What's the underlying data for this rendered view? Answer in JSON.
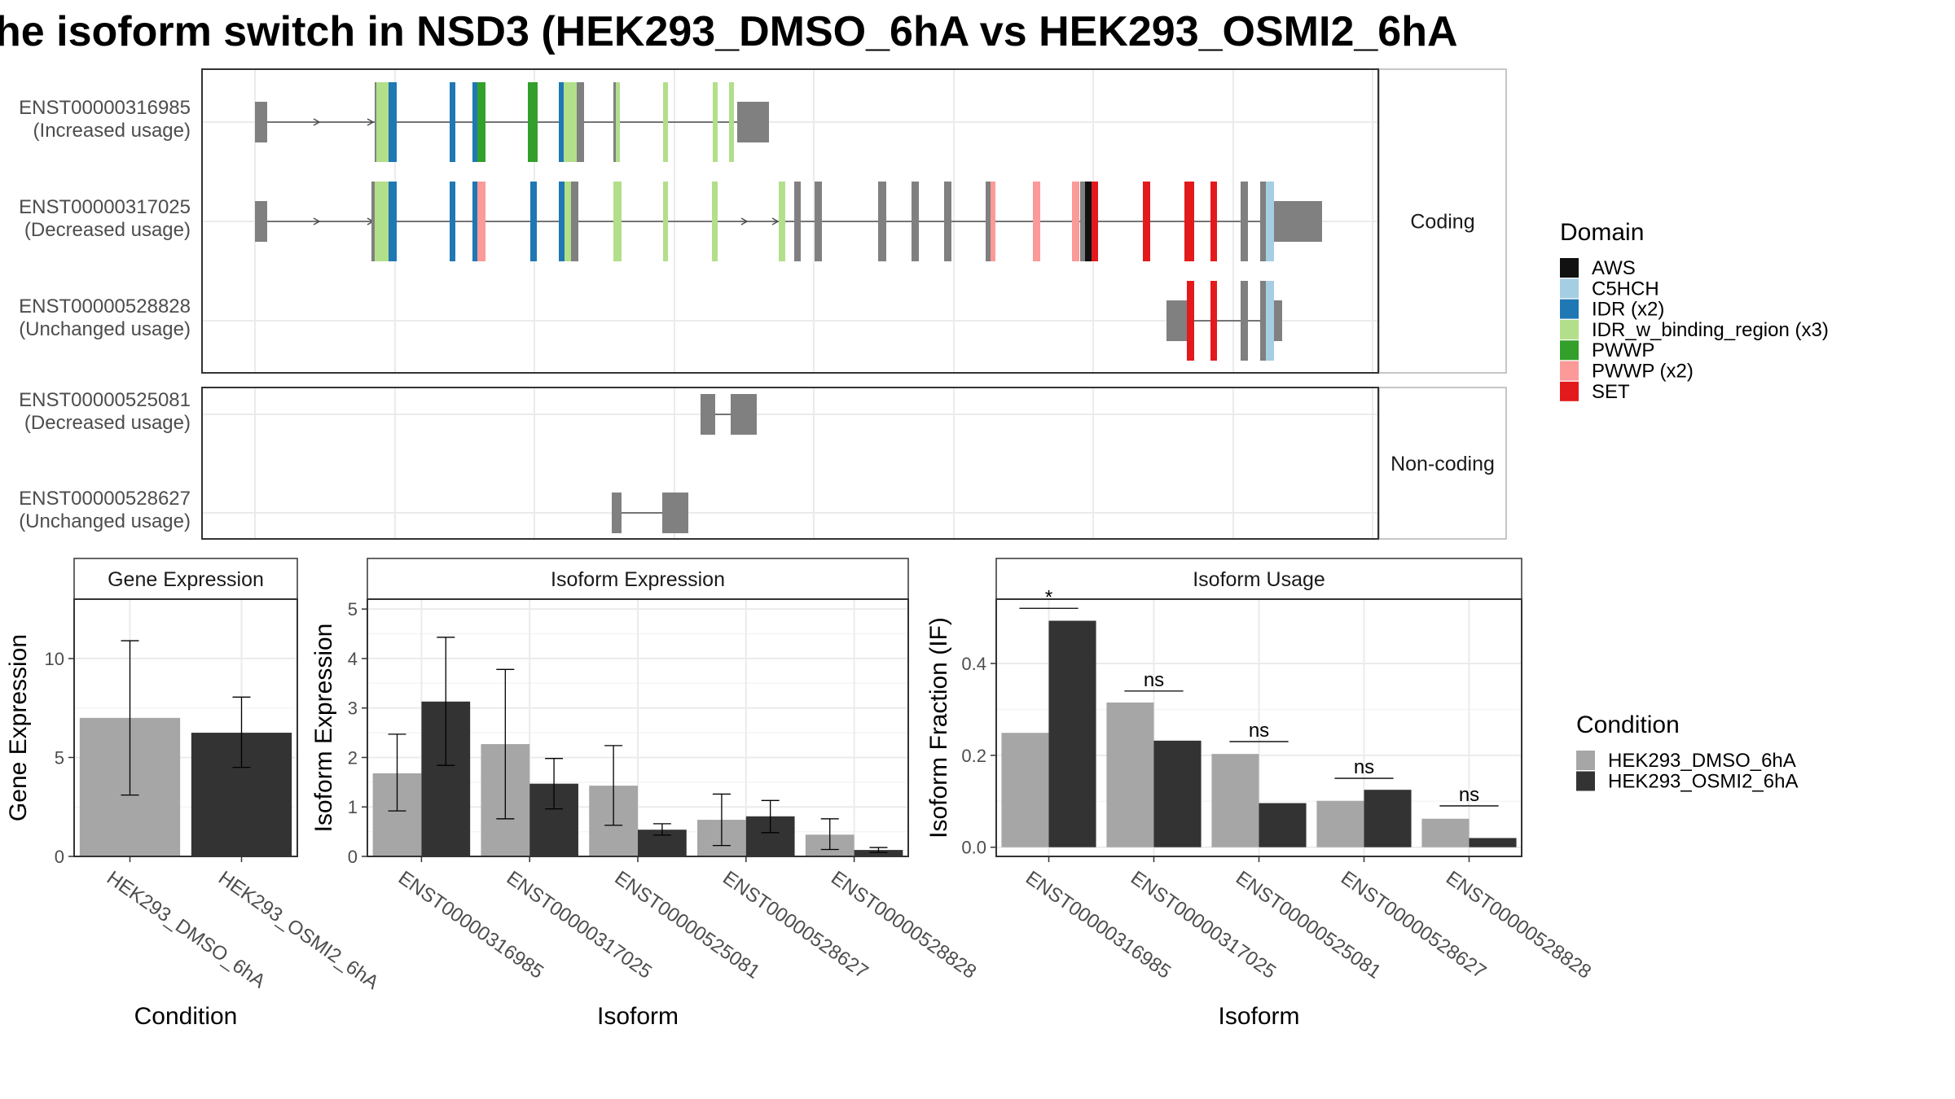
{
  "title": "he isoform switch in NSD3 (HEK293_DMSO_6hA vs HEK293_OSMI2_6hA",
  "colors": {
    "intron": "#4d4d4d",
    "exon_nc": "#808080",
    "grid": "#ebebeb",
    "panel_border": "#333333",
    "strip_border": "#b3b3b3",
    "dmso": "#a6a6a6",
    "osmi": "#333333"
  },
  "structure": {
    "facets": [
      {
        "label": "Coding",
        "transcripts": [
          {
            "id": "ENST00000316985",
            "usage": "(Increased usage)"
          },
          {
            "id": "ENST00000317025",
            "usage": "(Decreased usage)"
          },
          {
            "id": "ENST00000528828",
            "usage": "(Unchanged usage)"
          }
        ]
      },
      {
        "label": "Non-coding",
        "transcripts": [
          {
            "id": "ENST00000525081",
            "usage": "(Decreased usage)"
          },
          {
            "id": "ENST00000528627",
            "usage": "(Unchanged usage)"
          }
        ]
      }
    ]
  },
  "domain_legend": {
    "title": "Domain",
    "items": [
      {
        "label": "AWS",
        "color": "#111111"
      },
      {
        "label": "C5HCH",
        "color": "#a6cee3"
      },
      {
        "label": "IDR (x2)",
        "color": "#1f78b4"
      },
      {
        "label": "IDR_w_binding_region (x3)",
        "color": "#b2df8a"
      },
      {
        "label": "PWWP",
        "color": "#33a02c"
      },
      {
        "label": "PWWP (x2)",
        "color": "#fb9a99"
      },
      {
        "label": "SET",
        "color": "#e31a1c"
      }
    ]
  },
  "condition_legend": {
    "title": "Condition",
    "items": [
      {
        "label": "HEK293_DMSO_6hA",
        "color": "#a6a6a6"
      },
      {
        "label": "HEK293_OSMI2_6hA",
        "color": "#333333"
      }
    ]
  },
  "chart_data": [
    {
      "type": "bar",
      "title": "Gene Expression",
      "xlabel": "Condition",
      "ylabel": "Gene Expression",
      "ylim": [
        0,
        13
      ],
      "yticks": [
        0,
        5,
        10
      ],
      "categories": [
        "HEK293_DMSO_6hA",
        "HEK293_OSMI2_6hA"
      ],
      "values": [
        7.0,
        6.25
      ],
      "err_low": [
        3.1,
        4.5
      ],
      "err_high": [
        10.9,
        8.05
      ]
    },
    {
      "type": "bar",
      "title": "Isoform Expression",
      "xlabel": "Isoform",
      "ylabel": "Isoform Expression",
      "ylim": [
        0,
        5.2
      ],
      "yticks": [
        0,
        1,
        2,
        3,
        4,
        5
      ],
      "categories": [
        "ENST00000316985",
        "ENST00000317025",
        "ENST00000525081",
        "ENST00000528627",
        "ENST00000528828"
      ],
      "series": [
        {
          "values": [
            1.68,
            2.27,
            1.43,
            0.74,
            0.44
          ],
          "err_low": [
            0.92,
            0.76,
            0.63,
            0.22,
            0.14
          ],
          "err_high": [
            2.47,
            3.78,
            2.24,
            1.26,
            0.76
          ]
        },
        {
          "values": [
            3.13,
            1.47,
            0.54,
            0.81,
            0.13
          ],
          "err_low": [
            1.84,
            0.96,
            0.43,
            0.48,
            0.08
          ],
          "err_high": [
            4.43,
            1.98,
            0.66,
            1.13,
            0.18
          ]
        }
      ]
    },
    {
      "type": "bar",
      "title": "Isoform Usage",
      "xlabel": "Isoform",
      "ylabel": "Isoform Fraction (IF)",
      "ylim": [
        -0.02,
        0.54
      ],
      "yticks": [
        0.0,
        0.2,
        0.4
      ],
      "ytick_labels": [
        "0.0",
        "0.2",
        "0.4"
      ],
      "categories": [
        "ENST00000316985",
        "ENST00000317025",
        "ENST00000525081",
        "ENST00000528627",
        "ENST00000528828"
      ],
      "series": [
        {
          "values": [
            0.249,
            0.315,
            0.203,
            0.101,
            0.062
          ]
        },
        {
          "values": [
            0.493,
            0.232,
            0.096,
            0.125,
            0.02
          ]
        }
      ],
      "significance": [
        "*",
        "ns",
        "ns",
        "ns",
        "ns"
      ],
      "sig_y": [
        0.52,
        0.34,
        0.23,
        0.15,
        0.09
      ]
    }
  ]
}
